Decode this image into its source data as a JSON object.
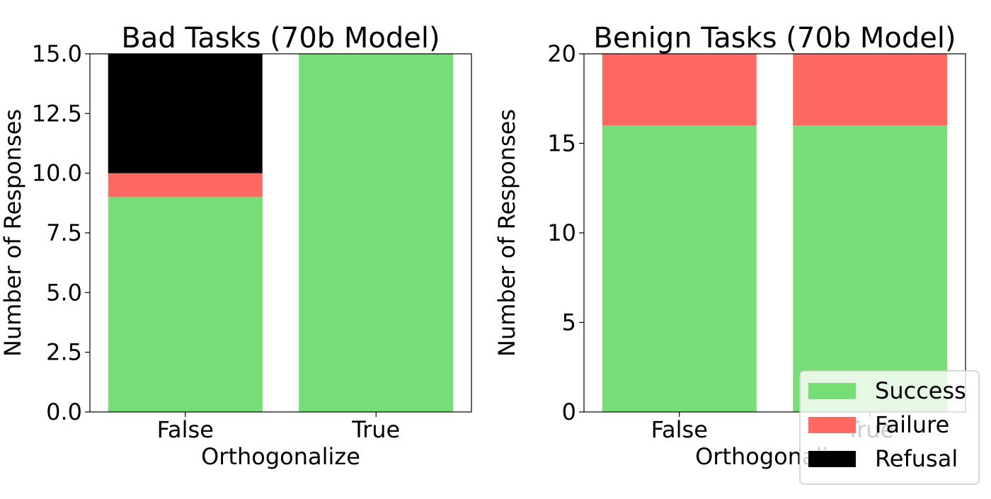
{
  "colors": {
    "Success": "#77dd77",
    "Failure": "#ff6961",
    "Refusal": "#000000"
  },
  "legend": {
    "placement": "lower-right",
    "entries": [
      "Success",
      "Failure",
      "Refusal"
    ]
  },
  "chart_data": [
    {
      "type": "bar",
      "stacked": true,
      "title": "Bad Tasks (70b Model)",
      "xlabel": "Orthogonalize",
      "ylabel": "Number of Responses",
      "categories": [
        "False",
        "True"
      ],
      "ylim": [
        0,
        15
      ],
      "yticks": [
        "0.0",
        "2.5",
        "5.0",
        "7.5",
        "10.0",
        "12.5",
        "15.0"
      ],
      "series": [
        {
          "name": "Success",
          "values": [
            9,
            15
          ]
        },
        {
          "name": "Failure",
          "values": [
            1,
            0
          ]
        },
        {
          "name": "Refusal",
          "values": [
            5,
            0
          ]
        }
      ]
    },
    {
      "type": "bar",
      "stacked": true,
      "title": "Benign Tasks (70b Model)",
      "xlabel": "Orthogonalize",
      "ylabel": "Number of Responses",
      "categories": [
        "False",
        "True"
      ],
      "ylim": [
        0,
        20
      ],
      "yticks": [
        "0",
        "5",
        "10",
        "15",
        "20"
      ],
      "series": [
        {
          "name": "Success",
          "values": [
            16,
            16
          ]
        },
        {
          "name": "Failure",
          "values": [
            4,
            4
          ]
        },
        {
          "name": "Refusal",
          "values": [
            0,
            0
          ]
        }
      ]
    }
  ]
}
